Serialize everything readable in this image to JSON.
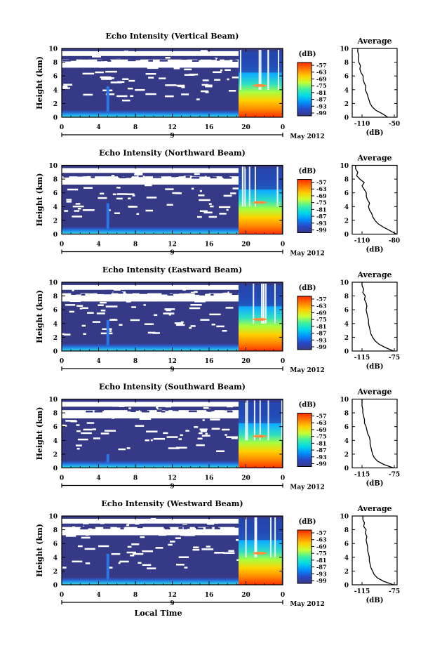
{
  "panels": [
    {
      "title": "Echo Intensity (Vertical Beam)",
      "avg_xticks": [
        "-110",
        "-50"
      ],
      "avg_profile": [
        [
          0,
          -62
        ],
        [
          0.5,
          -72
        ],
        [
          1,
          -84
        ],
        [
          1.5,
          -91
        ],
        [
          2,
          -95
        ],
        [
          2.5,
          -97
        ],
        [
          3,
          -99
        ],
        [
          3.5,
          -101
        ],
        [
          4,
          -104
        ],
        [
          4.5,
          -103
        ],
        [
          5,
          -106
        ],
        [
          5.5,
          -108
        ],
        [
          6,
          -108
        ],
        [
          6.5,
          -112
        ],
        [
          7,
          -114
        ],
        [
          7.5,
          -113
        ],
        [
          8,
          -116
        ],
        [
          8.5,
          -117
        ],
        [
          9,
          -116
        ],
        [
          9.5,
          -118
        ],
        [
          10,
          -118
        ]
      ]
    },
    {
      "title": "Echo Intensity (Northward Beam)",
      "avg_xticks": [
        "-110",
        "-80"
      ],
      "avg_profile": [
        [
          0,
          -78
        ],
        [
          0.5,
          -84
        ],
        [
          1,
          -90
        ],
        [
          1.5,
          -95
        ],
        [
          2,
          -98
        ],
        [
          2.5,
          -100
        ],
        [
          3,
          -101
        ],
        [
          3.5,
          -103
        ],
        [
          4,
          -104
        ],
        [
          4.5,
          -103
        ],
        [
          5,
          -105
        ],
        [
          5.5,
          -106
        ],
        [
          6,
          -106
        ],
        [
          6.5,
          -108
        ],
        [
          7,
          -110
        ],
        [
          7.5,
          -108
        ],
        [
          8,
          -112
        ],
        [
          8.5,
          -115
        ],
        [
          9,
          -114
        ],
        [
          9.5,
          -116
        ],
        [
          10,
          -116
        ]
      ]
    },
    {
      "title": "Echo Intensity (Eastward Beam)",
      "avg_xticks": [
        "-115",
        "-75"
      ],
      "avg_profile": [
        [
          0,
          -76
        ],
        [
          0.5,
          -86
        ],
        [
          1,
          -94
        ],
        [
          1.5,
          -99
        ],
        [
          2,
          -102
        ],
        [
          2.5,
          -104
        ],
        [
          3,
          -105
        ],
        [
          3.5,
          -106
        ],
        [
          4,
          -107
        ],
        [
          4.5,
          -107
        ],
        [
          5,
          -108
        ],
        [
          5.5,
          -109
        ],
        [
          6,
          -110
        ],
        [
          6.5,
          -109
        ],
        [
          7,
          -110
        ],
        [
          7.5,
          -112
        ],
        [
          8,
          -111
        ],
        [
          8.5,
          -114
        ],
        [
          9,
          -113
        ],
        [
          9.5,
          -115
        ],
        [
          10,
          -115
        ]
      ]
    },
    {
      "title": "Echo Intensity (Southward Beam)",
      "avg_xticks": [
        "-115",
        "-75"
      ],
      "avg_profile": [
        [
          0,
          -76
        ],
        [
          0.5,
          -88
        ],
        [
          1,
          -96
        ],
        [
          1.5,
          -100
        ],
        [
          2,
          -102
        ],
        [
          2.5,
          -103
        ],
        [
          3,
          -104
        ],
        [
          3.5,
          -105
        ],
        [
          4,
          -105
        ],
        [
          4.5,
          -106
        ],
        [
          5,
          -108
        ],
        [
          5.5,
          -109
        ],
        [
          6,
          -110
        ],
        [
          6.5,
          -112
        ],
        [
          7,
          -112
        ],
        [
          7.5,
          -113
        ],
        [
          8,
          -114
        ],
        [
          8.5,
          -114
        ],
        [
          9,
          -115
        ],
        [
          9.5,
          -115
        ],
        [
          10,
          -115
        ]
      ]
    },
    {
      "title": "Echo Intensity (Westward Beam)",
      "avg_xticks": [
        "-115",
        "-75"
      ],
      "avg_profile": [
        [
          0,
          -76
        ],
        [
          0.5,
          -88
        ],
        [
          1,
          -96
        ],
        [
          1.5,
          -100
        ],
        [
          2,
          -102
        ],
        [
          2.5,
          -104
        ],
        [
          3,
          -105
        ],
        [
          3.5,
          -106
        ],
        [
          4,
          -106
        ],
        [
          4.5,
          -107
        ],
        [
          5,
          -108
        ],
        [
          5.5,
          -108
        ],
        [
          6,
          -109
        ],
        [
          6.5,
          -110
        ],
        [
          7,
          -109
        ],
        [
          7.5,
          -111
        ],
        [
          8,
          -110
        ],
        [
          8.5,
          -113
        ],
        [
          9,
          -112
        ],
        [
          9.5,
          -114
        ],
        [
          10,
          -114
        ]
      ]
    }
  ],
  "shared": {
    "ylabel": "Height (km)",
    "xticks": [
      "0",
      "4",
      "8",
      "12",
      "16",
      "20",
      "0"
    ],
    "xticks_values": [
      0,
      4,
      8,
      12,
      16,
      20,
      24
    ],
    "date_day": "9",
    "date_month_year": "May 2012",
    "colorbar_unit": "(dB)",
    "colorbar_ticks": [
      "-57",
      "-63",
      "-69",
      "-75",
      "-81",
      "-87",
      "-93",
      "-99"
    ],
    "avg_title": "Average",
    "avg_xlabel": "(dB)",
    "xlabel": "Local Time",
    "y_range_km": [
      0,
      10
    ],
    "time_range_h": [
      0,
      24
    ],
    "colormap": [
      "#ff2a00",
      "#ff7a00",
      "#ffcc00",
      "#c8ff30",
      "#40f0a0",
      "#00d8e8",
      "#0090ff",
      "#2848c8",
      "#363a86"
    ],
    "background_fill": "#363a86"
  },
  "chart_data": [
    {
      "type": "heatmap",
      "title": "Echo Intensity (Vertical Beam)",
      "xlabel": "Local Time",
      "ylabel": "Height (km)",
      "xlim": [
        0,
        24
      ],
      "ylim": [
        0,
        10
      ],
      "colorbar": {
        "unit": "(dB)",
        "range": [
          -99,
          -57
        ]
      },
      "features": {
        "strong_echo_onset_h": 19.2,
        "strong_echo_end_h": 24,
        "spike_time_h": 5,
        "spike_top_km": 4.5
      }
    },
    {
      "type": "heatmap",
      "title": "Echo Intensity (Northward Beam)",
      "xlabel": "Local Time",
      "ylabel": "Height (km)",
      "xlim": [
        0,
        24
      ],
      "ylim": [
        0,
        10
      ],
      "colorbar": {
        "unit": "(dB)",
        "range": [
          -99,
          -57
        ]
      },
      "features": {
        "strong_echo_onset_h": 19.2,
        "strong_echo_end_h": 24,
        "spike_time_h": 5,
        "spike_top_km": 4.5
      }
    },
    {
      "type": "heatmap",
      "title": "Echo Intensity (Eastward Beam)",
      "xlabel": "Local Time",
      "ylabel": "Height (km)",
      "xlim": [
        0,
        24
      ],
      "ylim": [
        0,
        10
      ],
      "colorbar": {
        "unit": "(dB)",
        "range": [
          -99,
          -57
        ]
      },
      "features": {
        "strong_echo_onset_h": 19.2,
        "strong_echo_end_h": 24,
        "spike_time_h": 5,
        "spike_top_km": 4.5
      }
    },
    {
      "type": "heatmap",
      "title": "Echo Intensity (Southward Beam)",
      "xlabel": "Local Time",
      "ylabel": "Height (km)",
      "xlim": [
        0,
        24
      ],
      "ylim": [
        0,
        10
      ],
      "colorbar": {
        "unit": "(dB)",
        "range": [
          -99,
          -57
        ]
      },
      "features": {
        "strong_echo_onset_h": 19.2,
        "strong_echo_end_h": 24,
        "spike_time_h": 5,
        "spike_top_km": 2
      }
    },
    {
      "type": "heatmap",
      "title": "Echo Intensity (Westward Beam)",
      "xlabel": "Local Time",
      "ylabel": "Height (km)",
      "xlim": [
        0,
        24
      ],
      "ylim": [
        0,
        10
      ],
      "colorbar": {
        "unit": "(dB)",
        "range": [
          -99,
          -57
        ]
      },
      "features": {
        "strong_echo_onset_h": 19.2,
        "strong_echo_end_h": 24,
        "spike_time_h": 5,
        "spike_top_km": 4.5
      }
    }
  ]
}
